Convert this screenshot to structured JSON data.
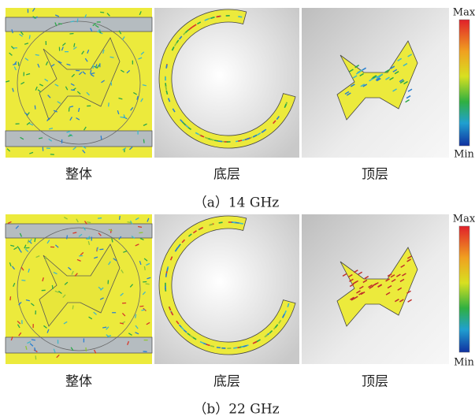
{
  "figure": {
    "rows": [
      {
        "caption": "（a）14 GHz",
        "panels": [
          "整体",
          "底层",
          "顶层"
        ]
      },
      {
        "caption": "（b）22 GHz",
        "panels": [
          "整体",
          "底层",
          "顶层"
        ]
      }
    ],
    "colorbar": {
      "max": "Max",
      "min": "Min"
    }
  }
}
